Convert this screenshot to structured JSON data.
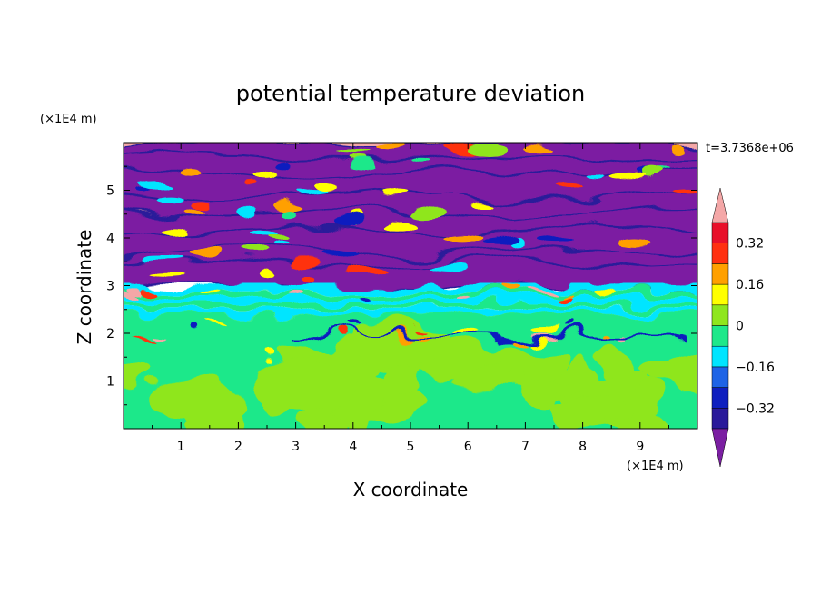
{
  "chart_data": {
    "type": "heatmap",
    "title": "potential temperature deviation",
    "xlabel": "X coordinate",
    "ylabel": "Z coordinate",
    "x_unit": "(×1E4 m)",
    "y_unit": "(×1E4 m)",
    "xlim": [
      0,
      10
    ],
    "ylim": [
      0,
      6
    ],
    "x_ticks": [
      "1",
      "2",
      "3",
      "4",
      "5",
      "6",
      "7",
      "8",
      "9"
    ],
    "y_ticks": [
      "1",
      "2",
      "3",
      "4",
      "5"
    ],
    "time_label": "t=3.7368e+06",
    "colorbar": {
      "labels": [
        "0.32",
        "0.16",
        "0",
        "−0.16",
        "−0.32"
      ],
      "label_values": [
        0.32,
        0.16,
        0,
        -0.16,
        -0.32
      ],
      "levels": [
        -0.4,
        -0.32,
        -0.24,
        -0.16,
        -0.08,
        0,
        0.08,
        0.16,
        0.24,
        0.32,
        0.4
      ],
      "colors": [
        "#7b1fa2",
        "#2a1a9a",
        "#0f1fbf",
        "#1e64e6",
        "#00e5ff",
        "#1ee88a",
        "#8fe61e",
        "#ffff00",
        "#ffa000",
        "#ff3010",
        "#e8102a",
        "#f4a7a7"
      ],
      "extend": "both"
    }
  }
}
